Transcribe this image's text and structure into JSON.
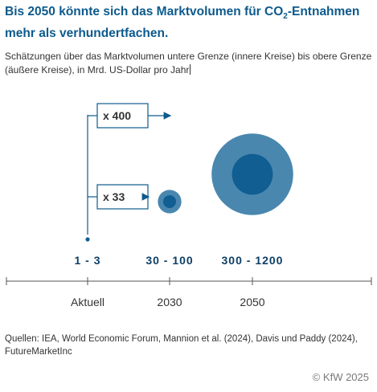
{
  "header": {
    "title_pre": "Bis 2050 könnte sich das Marktvolumen für CO",
    "title_sub": "2",
    "title_post": "-Entnahmen mehr als verhundertfachen.",
    "subtitle": "Schätzungen über das Marktvolumen untere Grenze (innere Kreise) bis obere Grenze (äußere Kreise), in Mrd. US-Dollar pro Jahr"
  },
  "chart_data": {
    "type": "bubble",
    "categories": [
      "Aktuell",
      "2030",
      "2050"
    ],
    "lower": [
      1,
      30,
      300
    ],
    "upper": [
      3,
      100,
      1200
    ],
    "range_labels": [
      "1 - 3",
      "30 - 100",
      "300 - 1200"
    ],
    "multipliers": [
      {
        "label": "x 400",
        "target": "2050"
      },
      {
        "label": "x 33",
        "target": "2030"
      }
    ],
    "colors": {
      "outer": "#4a87af",
      "inner": "#105e92",
      "text": "#0d3f66",
      "axis": "#555555"
    }
  },
  "footer": {
    "sources": "Quellen: IEA, World Economic Forum, Mannion et al. (2024), Davis und Paddy (2024), FutureMarketInc",
    "copyright": "© KfW 2025"
  }
}
